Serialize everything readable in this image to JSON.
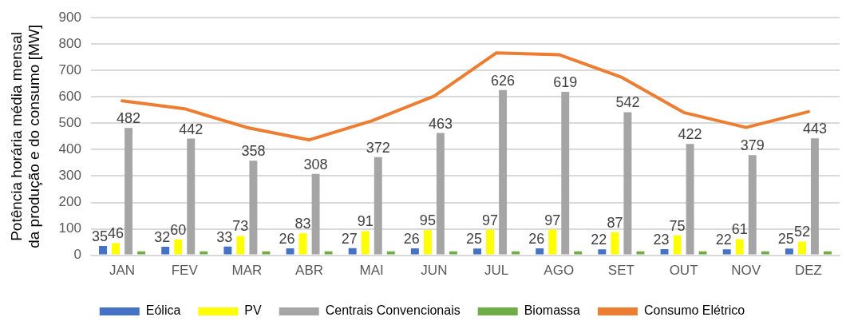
{
  "chart_data": {
    "type": "bar",
    "ylabel": "Potência horária média mensal\nda produção e do consumo [MW]",
    "categories": [
      "JAN",
      "FEV",
      "MAR",
      "ABR",
      "MAI",
      "JUN",
      "JUL",
      "AGO",
      "SET",
      "OUT",
      "NOV",
      "DEZ"
    ],
    "series": [
      {
        "name": "Eólica",
        "color": "#4472c4",
        "values": [
          35,
          32,
          33,
          26,
          27,
          26,
          25,
          26,
          22,
          23,
          22,
          25
        ],
        "value_labels": [
          "35",
          "32",
          "33",
          "26",
          "27",
          "26",
          "25",
          "26",
          "22",
          "23",
          "22",
          "25"
        ]
      },
      {
        "name": "PV",
        "color": "#ffff00",
        "values": [
          46,
          60,
          73,
          83,
          91,
          95,
          97,
          97,
          87,
          75,
          61,
          52
        ],
        "value_labels": [
          "46",
          "60",
          "73",
          "83",
          "91",
          "95",
          "97",
          "97",
          "87",
          "75",
          "61",
          "52"
        ]
      },
      {
        "name": "Centrais Convencionais",
        "color": "#a5a5a5",
        "values": [
          482,
          442,
          358,
          308,
          372,
          463,
          626,
          619,
          542,
          422,
          379,
          443
        ],
        "value_labels": [
          "482",
          "442",
          "358",
          "308",
          "372",
          "463",
          "626",
          "619",
          "542",
          "422",
          "379",
          "443"
        ]
      },
      {
        "name": "Biomassa",
        "color": "#70ad47",
        "values": [
          15,
          15,
          15,
          15,
          15,
          15,
          15,
          15,
          15,
          15,
          15,
          15
        ]
      },
      {
        "name": "Consumo Elétrico",
        "type": "line",
        "color": "#ed7d31",
        "values": [
          585,
          555,
          484,
          437,
          509,
          603,
          767,
          760,
          675,
          541,
          484,
          544
        ]
      }
    ],
    "ylim": [
      0,
      900
    ],
    "yticks": [
      0,
      100,
      200,
      300,
      400,
      500,
      600,
      700,
      800,
      900
    ],
    "grid": "y",
    "legend": "bottom",
    "marker": "none",
    "line_style": "solid"
  }
}
